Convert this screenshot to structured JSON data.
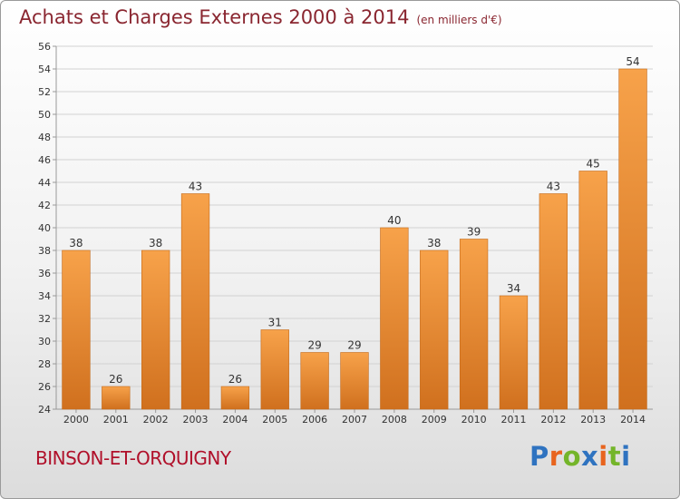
{
  "title": "Achats et Charges Externes 2000 à 2014",
  "subtitle": "(en milliers d'€)",
  "location": "BINSON-ET-ORQUIGNY",
  "brand": {
    "text": "Proxiti",
    "letter_colors": [
      "#2f73c0",
      "#e8641e",
      "#74b52a",
      "#2f73c0",
      "#e8641e",
      "#74b52a",
      "#2f73c0"
    ]
  },
  "colors": {
    "bar_light": "#f7a24a",
    "bar_dark": "#d0701e",
    "title": "#8a2630",
    "location": "#b0102a"
  },
  "chart_data": {
    "type": "bar",
    "categories": [
      "2000",
      "2001",
      "2002",
      "2003",
      "2004",
      "2005",
      "2006",
      "2007",
      "2008",
      "2009",
      "2010",
      "2011",
      "2012",
      "2013",
      "2014"
    ],
    "values": [
      38,
      26,
      38,
      43,
      26,
      31,
      29,
      29,
      40,
      38,
      39,
      34,
      43,
      45,
      54
    ],
    "ylim": [
      24,
      56
    ],
    "yticks": [
      24,
      26,
      28,
      30,
      32,
      34,
      36,
      38,
      40,
      42,
      44,
      46,
      48,
      50,
      52,
      54,
      56
    ],
    "grid": true,
    "legend": "none"
  }
}
